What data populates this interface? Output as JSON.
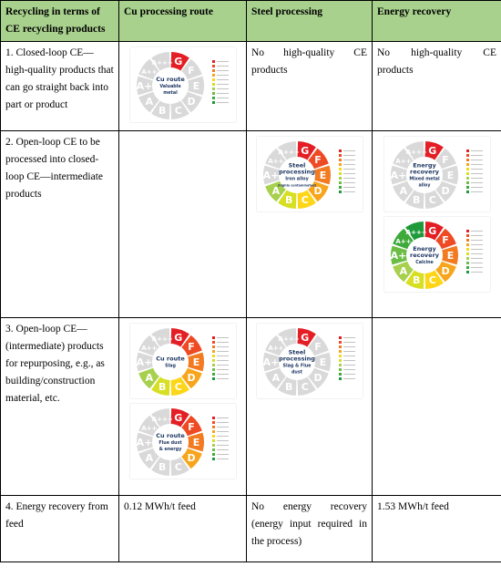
{
  "header": [
    "Recycling in terms of CE recycling products",
    "Cu processing route",
    "Steel processing",
    "Energy recovery"
  ],
  "grades": [
    "G",
    "F",
    "E",
    "D",
    "C",
    "B",
    "A",
    "A+",
    "A++",
    "A+++"
  ],
  "grade_colors": [
    "#e31e24",
    "#ee4a23",
    "#f27a21",
    "#f7a51c",
    "#fcd617",
    "#d7df23",
    "#a7d04e",
    "#6bbd45",
    "#3daa3a",
    "#1e9a3a"
  ],
  "rows": [
    {
      "label": "1. Closed-loop CE—high-quality products that can go straight back into part or product",
      "cu": {
        "donuts": [
          {
            "title": [
              "Cu route"
            ],
            "subtitle": [
              "Valuable",
              "metal"
            ],
            "colored": [
              "G"
            ]
          }
        ]
      },
      "steel": {
        "text": "No high-quality CE products"
      },
      "energy": {
        "text": "No high-quality CE products"
      }
    },
    {
      "label": "2. Open-loop CE to be processed into closed-loop CE—intermediate products",
      "steel": {
        "donuts": [
          {
            "title": [
              "Steel",
              "processing"
            ],
            "subtitle": [
              "Iron alloy",
              "(highly contaminated)"
            ],
            "colored": [
              "G",
              "F",
              "E",
              "D",
              "C",
              "B",
              "A"
            ]
          }
        ]
      },
      "energy": {
        "donuts": [
          {
            "title": [
              "Energy",
              "recovery"
            ],
            "subtitle": [
              "Mixed metal",
              "alloy"
            ],
            "colored": [
              "G"
            ]
          },
          {
            "title": [
              "Energy",
              "recovery"
            ],
            "subtitle": [
              "Calcine"
            ],
            "colored": [
              "G",
              "F",
              "E",
              "D",
              "C",
              "B",
              "A",
              "A+",
              "A++",
              "A+++"
            ]
          }
        ]
      }
    },
    {
      "label": "3. Open-loop CE—(intermediate) products for repurposing, e.g., as building/construction material, etc.",
      "cu": {
        "donuts": [
          {
            "title": [
              "Cu route"
            ],
            "subtitle": [
              "Slag"
            ],
            "colored": [
              "G",
              "F",
              "E",
              "D",
              "C",
              "B",
              "A"
            ]
          },
          {
            "title": [
              "Cu route"
            ],
            "subtitle": [
              "Flue dust",
              "& energy"
            ],
            "colored": [
              "G",
              "F",
              "E",
              "D"
            ]
          }
        ]
      },
      "steel": {
        "donuts": [
          {
            "title": [
              "Steel",
              "processing"
            ],
            "subtitle": [
              "Slag & Flue",
              "dust"
            ],
            "colored": [
              "G"
            ]
          }
        ]
      }
    },
    {
      "label": "4. Energy recovery from feed",
      "cu": {
        "text": "0.12 MWh/t feed"
      },
      "steel": {
        "text": "No energy recovery (energy input required in the process)"
      },
      "energy": {
        "text": "1.53 MWh/t feed"
      }
    }
  ]
}
